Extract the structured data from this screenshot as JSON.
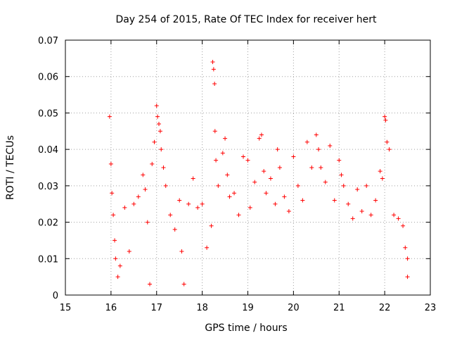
{
  "chart_data": {
    "type": "scatter",
    "title": "Day 254 of 2015, Rate Of TEC Index for receiver hert",
    "xlabel": "GPS time / hours",
    "ylabel": "ROTI / TECUs",
    "xlim": [
      15,
      23
    ],
    "ylim": [
      0,
      0.07
    ],
    "x_ticks": [
      "15",
      "16",
      "17",
      "18",
      "19",
      "20",
      "21",
      "22",
      "23"
    ],
    "y_ticks": [
      "0",
      "0.01",
      "0.02",
      "0.03",
      "0.04",
      "0.05",
      "0.06",
      "0.07"
    ],
    "grid": true,
    "marker": "plus",
    "color": "#ff0000",
    "series": [
      {
        "name": "ROTI",
        "points": [
          [
            15.97,
            0.049
          ],
          [
            16.0,
            0.036
          ],
          [
            16.02,
            0.028
          ],
          [
            16.05,
            0.022
          ],
          [
            16.08,
            0.015
          ],
          [
            16.1,
            0.01
          ],
          [
            16.15,
            0.005
          ],
          [
            16.2,
            0.008
          ],
          [
            16.3,
            0.024
          ],
          [
            16.4,
            0.012
          ],
          [
            16.5,
            0.025
          ],
          [
            16.6,
            0.027
          ],
          [
            16.7,
            0.033
          ],
          [
            16.75,
            0.029
          ],
          [
            16.8,
            0.02
          ],
          [
            16.85,
            0.003
          ],
          [
            16.9,
            0.036
          ],
          [
            16.95,
            0.042
          ],
          [
            17.0,
            0.052
          ],
          [
            17.02,
            0.049
          ],
          [
            17.05,
            0.047
          ],
          [
            17.08,
            0.045
          ],
          [
            17.1,
            0.04
          ],
          [
            17.15,
            0.035
          ],
          [
            17.2,
            0.03
          ],
          [
            17.3,
            0.022
          ],
          [
            17.4,
            0.018
          ],
          [
            17.5,
            0.026
          ],
          [
            17.55,
            0.012
          ],
          [
            17.6,
            0.003
          ],
          [
            17.7,
            0.025
          ],
          [
            17.8,
            0.032
          ],
          [
            17.9,
            0.024
          ],
          [
            18.0,
            0.025
          ],
          [
            18.1,
            0.013
          ],
          [
            18.2,
            0.019
          ],
          [
            18.23,
            0.064
          ],
          [
            18.25,
            0.062
          ],
          [
            18.27,
            0.058
          ],
          [
            18.28,
            0.045
          ],
          [
            18.3,
            0.037
          ],
          [
            18.35,
            0.03
          ],
          [
            18.45,
            0.039
          ],
          [
            18.5,
            0.043
          ],
          [
            18.55,
            0.033
          ],
          [
            18.6,
            0.027
          ],
          [
            18.7,
            0.028
          ],
          [
            18.8,
            0.022
          ],
          [
            18.9,
            0.038
          ],
          [
            19.0,
            0.037
          ],
          [
            19.05,
            0.024
          ],
          [
            19.15,
            0.031
          ],
          [
            19.25,
            0.043
          ],
          [
            19.3,
            0.044
          ],
          [
            19.35,
            0.034
          ],
          [
            19.4,
            0.028
          ],
          [
            19.5,
            0.032
          ],
          [
            19.6,
            0.025
          ],
          [
            19.65,
            0.04
          ],
          [
            19.7,
            0.035
          ],
          [
            19.8,
            0.027
          ],
          [
            19.9,
            0.023
          ],
          [
            20.0,
            0.038
          ],
          [
            20.1,
            0.03
          ],
          [
            20.2,
            0.026
          ],
          [
            20.3,
            0.042
          ],
          [
            20.4,
            0.035
          ],
          [
            20.5,
            0.044
          ],
          [
            20.55,
            0.04
          ],
          [
            20.6,
            0.035
          ],
          [
            20.7,
            0.031
          ],
          [
            20.8,
            0.041
          ],
          [
            20.9,
            0.026
          ],
          [
            21.0,
            0.037
          ],
          [
            21.05,
            0.033
          ],
          [
            21.1,
            0.03
          ],
          [
            21.2,
            0.025
          ],
          [
            21.3,
            0.021
          ],
          [
            21.4,
            0.029
          ],
          [
            21.5,
            0.023
          ],
          [
            21.6,
            0.03
          ],
          [
            21.7,
            0.022
          ],
          [
            21.8,
            0.026
          ],
          [
            21.9,
            0.034
          ],
          [
            21.95,
            0.032
          ],
          [
            22.0,
            0.049
          ],
          [
            22.02,
            0.048
          ],
          [
            22.05,
            0.042
          ],
          [
            22.1,
            0.04
          ],
          [
            22.2,
            0.022
          ],
          [
            22.3,
            0.021
          ],
          [
            22.4,
            0.019
          ],
          [
            22.45,
            0.013
          ],
          [
            22.5,
            0.01
          ],
          [
            22.5,
            0.005
          ]
        ]
      }
    ]
  }
}
